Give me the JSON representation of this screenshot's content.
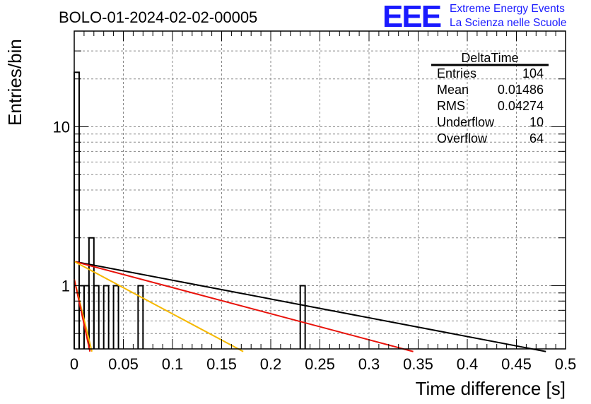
{
  "header": {
    "title": "BOLO-01-2024-02-02-00005",
    "logo_text": "EEE",
    "logo_line1": "Extreme Energy Events",
    "logo_line2": "La Scienza nelle Scuole",
    "logo_color": "#1a1aff"
  },
  "stats_box": {
    "name": "DeltaTime",
    "rows": [
      {
        "label": "Entries",
        "value": "104"
      },
      {
        "label": "Mean",
        "value": "0.01486"
      },
      {
        "label": "RMS",
        "value": "0.04274"
      },
      {
        "label": "Underflow",
        "value": "10"
      },
      {
        "label": "Overflow",
        "value": "64"
      }
    ]
  },
  "chart_data": {
    "type": "bar",
    "title": "BOLO-01-2024-02-02-00005",
    "xlabel": "Time difference [s]",
    "ylabel": "Entries/bin",
    "xlim": [
      0,
      0.5
    ],
    "ylim_log": [
      0.4,
      40
    ],
    "yscale": "log",
    "grid": true,
    "x_ticks": [
      "0",
      "0.05",
      "0.1",
      "0.15",
      "0.2",
      "0.25",
      "0.3",
      "0.35",
      "0.4",
      "0.45",
      "0.5"
    ],
    "y_ticks": [
      "1",
      "10"
    ],
    "bin_width": 0.005,
    "histogram": [
      {
        "x": 0.0,
        "count": 22
      },
      {
        "x": 0.005,
        "count": 1
      },
      {
        "x": 0.01,
        "count": 1
      },
      {
        "x": 0.015,
        "count": 2
      },
      {
        "x": 0.02,
        "count": 1
      },
      {
        "x": 0.03,
        "count": 1
      },
      {
        "x": 0.04,
        "count": 1
      },
      {
        "x": 0.065,
        "count": 1
      },
      {
        "x": 0.23,
        "count": 1
      }
    ],
    "fit_lines": [
      {
        "color": "#000000",
        "points": [
          [
            0.0,
            1.42
          ],
          [
            0.48,
            0.385
          ]
        ]
      },
      {
        "color": "#e8120a",
        "points": [
          [
            0.0,
            1.42
          ],
          [
            0.345,
            0.385
          ]
        ]
      },
      {
        "color": "#f5b800",
        "points": [
          [
            0.0,
            1.42
          ],
          [
            0.172,
            0.385
          ]
        ]
      },
      {
        "color": "#f5b800",
        "points": [
          [
            0.0,
            1.1
          ],
          [
            0.018,
            0.385
          ]
        ]
      },
      {
        "color": "#e8120a",
        "points": [
          [
            0.0,
            1.1
          ],
          [
            0.016,
            0.385
          ]
        ]
      }
    ]
  }
}
